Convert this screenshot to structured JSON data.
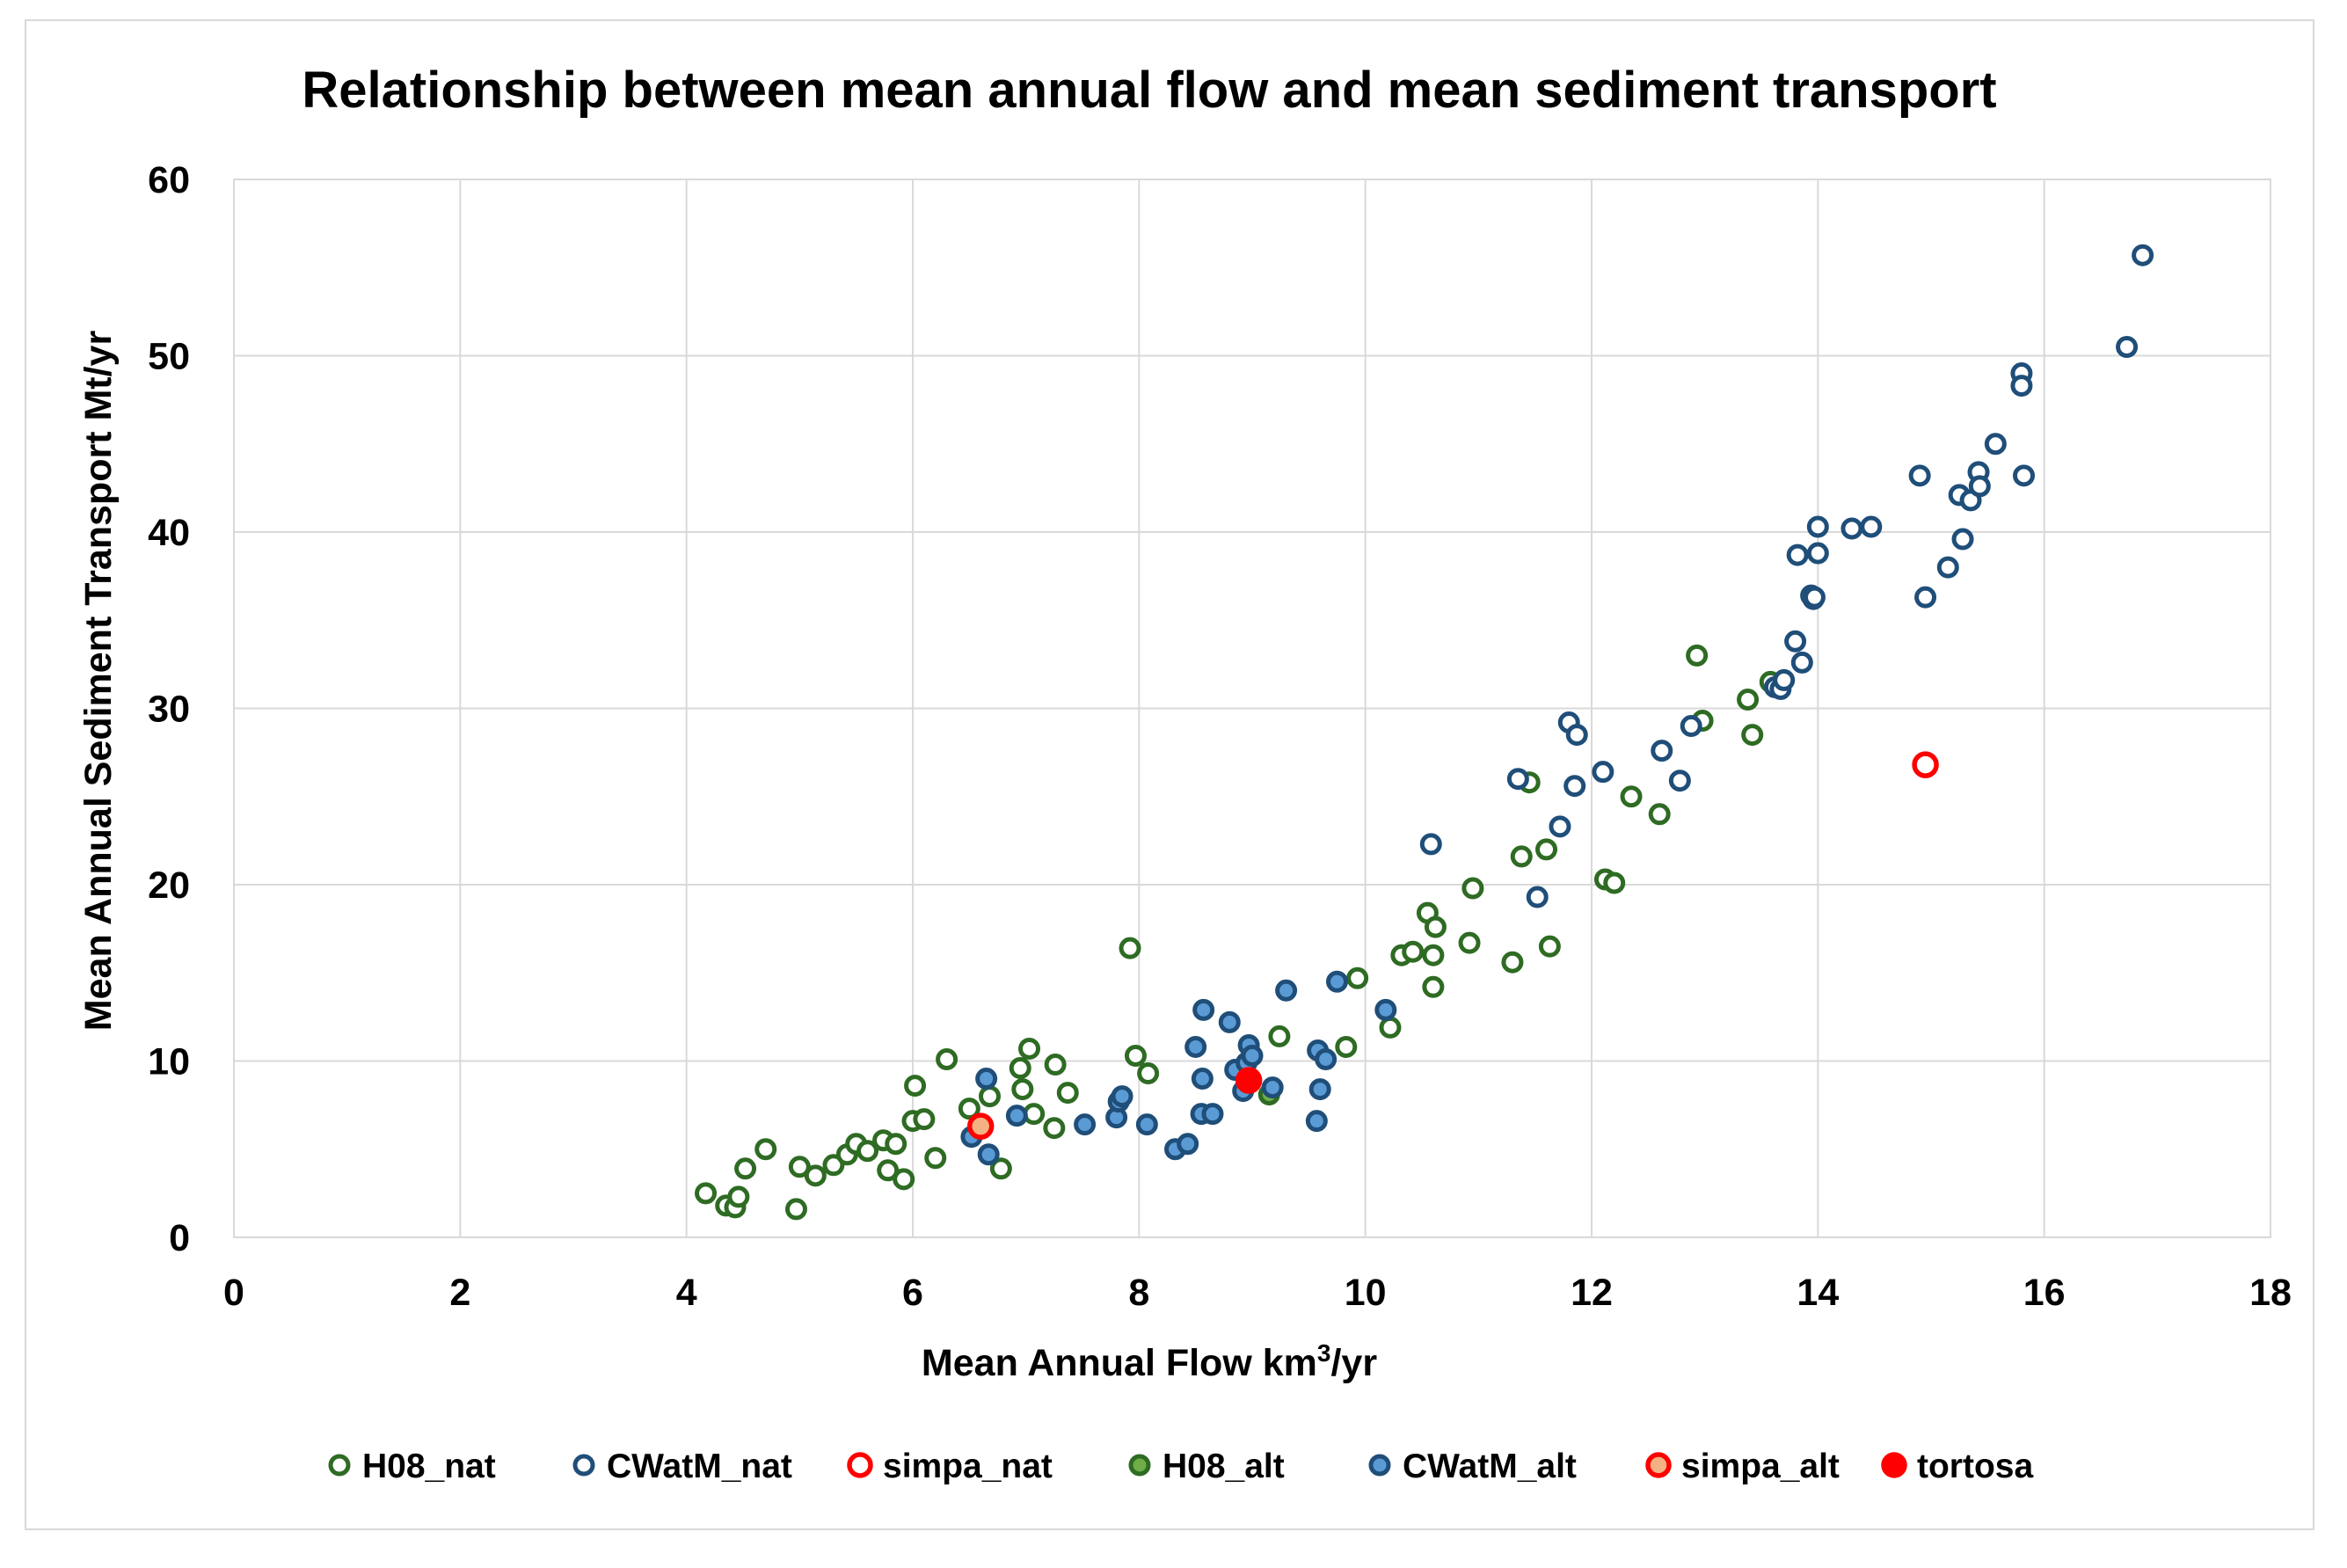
{
  "chart_data": {
    "type": "scatter",
    "title": "Relationship between mean annual flow and mean sediment transport",
    "xlabel": "Mean Annual Flow km",
    "xlabel_sup": "3",
    "xlabel_suffix": "/yr",
    "ylabel": "Mean Annual Sediment Transport  Mt/yr",
    "xlim": [
      0,
      18
    ],
    "ylim": [
      0,
      60
    ],
    "xticks": [
      0,
      2,
      4,
      6,
      8,
      10,
      12,
      14,
      16,
      18
    ],
    "yticks": [
      0,
      10,
      20,
      30,
      40,
      50,
      60
    ],
    "grid": true,
    "legend_position": "bottom",
    "series": [
      {
        "name": "H08_nat",
        "marker": "hollow-circle",
        "color": "#2e6b23",
        "fill": "#ffffff",
        "x": [
          4.17,
          4.35,
          4.43,
          4.46,
          4.52,
          4.7,
          4.97,
          5.0,
          5.14,
          5.3,
          5.42,
          5.5,
          5.6,
          5.74,
          5.78,
          5.85,
          5.92,
          6.0,
          6.02,
          6.1,
          6.2,
          6.3,
          6.5,
          6.68,
          6.78,
          6.95,
          6.97,
          7.03,
          7.07,
          7.25,
          7.26,
          7.37,
          7.92,
          7.97,
          8.08,
          9.24,
          9.83,
          9.93,
          10.22,
          10.32,
          10.42,
          10.55,
          10.6,
          10.6,
          10.62,
          10.92,
          10.95,
          11.3,
          11.38,
          11.45,
          11.6,
          11.63,
          12.12,
          12.2,
          12.35,
          12.6,
          12.93,
          12.98,
          13.38,
          13.42,
          13.58
        ],
        "y": [
          2.5,
          1.8,
          1.7,
          2.3,
          3.9,
          5.0,
          1.6,
          4.0,
          3.5,
          4.1,
          4.7,
          5.3,
          4.9,
          5.5,
          3.8,
          5.3,
          3.3,
          6.6,
          8.6,
          6.7,
          4.5,
          10.1,
          7.3,
          8.0,
          3.9,
          9.6,
          8.4,
          10.7,
          7.0,
          6.2,
          9.8,
          8.2,
          16.4,
          10.3,
          9.3,
          11.4,
          10.8,
          14.7,
          11.9,
          16.0,
          16.2,
          18.4,
          14.2,
          16.0,
          17.6,
          16.7,
          19.8,
          15.6,
          21.6,
          25.8,
          22.0,
          16.5,
          20.3,
          20.1,
          25.0,
          24.0,
          33.0,
          29.3,
          30.5,
          28.5,
          31.5
        ]
      },
      {
        "name": "CWatM_nat",
        "marker": "hollow-circle",
        "color": "#1f4e79",
        "fill": "#ffffff",
        "x": [
          10.58,
          11.35,
          11.52,
          11.72,
          11.8,
          11.85,
          11.87,
          12.1,
          12.62,
          12.78,
          12.88,
          13.62,
          13.67,
          13.7,
          13.8,
          13.82,
          13.86,
          13.94,
          13.96,
          13.97,
          14.0,
          14.0,
          14.3,
          14.47,
          14.9,
          14.95,
          15.15,
          15.25,
          15.28,
          15.35,
          15.42,
          15.43,
          15.57,
          15.8,
          15.8,
          15.82,
          16.73,
          16.87
        ],
        "y": [
          22.3,
          26.0,
          19.3,
          23.3,
          29.2,
          25.6,
          28.5,
          26.4,
          27.6,
          25.9,
          29.0,
          31.2,
          31.1,
          31.6,
          33.8,
          38.7,
          32.6,
          36.4,
          36.2,
          36.3,
          38.8,
          40.3,
          40.2,
          40.3,
          43.2,
          36.3,
          38.0,
          42.1,
          39.6,
          41.8,
          43.4,
          42.6,
          45.0,
          49.0,
          48.3,
          43.2,
          50.5,
          55.7
        ]
      },
      {
        "name": "simpa_nat",
        "marker": "hollow-circle",
        "color": "#ff0000",
        "fill": "#ffffff",
        "x": [
          14.95
        ],
        "y": [
          26.8
        ]
      },
      {
        "name": "H08_alt",
        "marker": "filled-circle",
        "color": "#2e6b23",
        "fill": "#70ad47",
        "x": [
          9.15
        ],
        "y": [
          8.1
        ]
      },
      {
        "name": "CWatM_alt",
        "marker": "filled-circle",
        "color": "#1f4e79",
        "fill": "#5b9bd5",
        "x": [
          6.52,
          6.65,
          6.67,
          6.92,
          7.52,
          7.8,
          7.82,
          7.85,
          8.07,
          8.32,
          8.43,
          8.5,
          8.55,
          8.56,
          8.57,
          8.65,
          8.8,
          8.85,
          8.92,
          8.95,
          8.97,
          9.0,
          9.18,
          9.3,
          9.57,
          9.58,
          9.6,
          9.65,
          9.75,
          10.18
        ],
        "y": [
          5.7,
          9.0,
          4.7,
          6.9,
          6.4,
          6.8,
          7.7,
          8.0,
          6.4,
          5.0,
          5.3,
          10.8,
          7.0,
          9.0,
          12.9,
          7.0,
          12.2,
          9.5,
          8.3,
          9.9,
          10.9,
          10.3,
          8.5,
          14.0,
          6.6,
          10.6,
          8.4,
          10.1,
          14.5,
          12.9
        ]
      },
      {
        "name": "simpa_alt",
        "marker": "filled-circle",
        "color": "#ff0000",
        "fill": "#f4b183",
        "x": [
          6.6
        ],
        "y": [
          6.3
        ]
      },
      {
        "name": "tortosa",
        "marker": "filled-circle",
        "color": "#ff0000",
        "fill": "#ff0000",
        "x": [
          8.97
        ],
        "y": [
          8.9
        ]
      }
    ]
  }
}
